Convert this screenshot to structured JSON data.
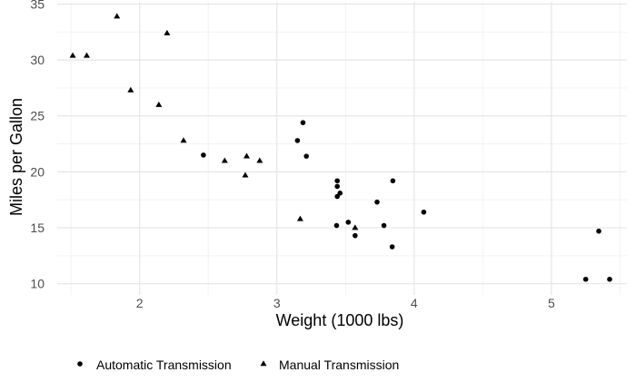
{
  "chart_data": {
    "type": "scatter",
    "xlabel": "Weight (1000 lbs)",
    "ylabel": "Miles per Gallon",
    "xlim": [
      1.4,
      5.55
    ],
    "ylim": [
      9.0,
      35.2
    ],
    "x_ticks": [
      2,
      3,
      4,
      5
    ],
    "y_ticks": [
      10,
      15,
      20,
      25,
      30,
      35
    ],
    "x_minor_ticks": [
      1.5,
      2.5,
      3.5,
      4.5,
      5.5
    ],
    "y_minor_ticks": [
      12.5,
      17.5,
      22.5,
      27.5,
      32.5
    ],
    "grid": true,
    "legend_position": "bottom-left",
    "series": [
      {
        "name": "Automatic Transmission",
        "marker": "circle",
        "points": [
          [
            3.215,
            21.4
          ],
          [
            3.44,
            18.7
          ],
          [
            3.46,
            18.1
          ],
          [
            3.57,
            14.3
          ],
          [
            3.19,
            24.4
          ],
          [
            3.15,
            22.8
          ],
          [
            3.44,
            19.2
          ],
          [
            3.44,
            17.8
          ],
          [
            4.07,
            16.4
          ],
          [
            3.73,
            17.3
          ],
          [
            3.78,
            15.2
          ],
          [
            5.25,
            10.4
          ],
          [
            5.424,
            10.4
          ],
          [
            5.345,
            14.7
          ],
          [
            2.465,
            21.5
          ],
          [
            3.52,
            15.5
          ],
          [
            3.435,
            15.2
          ],
          [
            3.84,
            13.3
          ],
          [
            3.845,
            19.2
          ]
        ]
      },
      {
        "name": "Manual Transmission",
        "marker": "triangle",
        "points": [
          [
            2.62,
            21.0
          ],
          [
            2.875,
            21.0
          ],
          [
            2.32,
            22.8
          ],
          [
            2.2,
            32.4
          ],
          [
            1.615,
            30.4
          ],
          [
            1.835,
            33.9
          ],
          [
            1.935,
            27.3
          ],
          [
            2.14,
            26.0
          ],
          [
            1.513,
            30.4
          ],
          [
            3.17,
            15.8
          ],
          [
            2.77,
            19.7
          ],
          [
            3.57,
            15.0
          ],
          [
            2.78,
            21.4
          ]
        ]
      }
    ]
  }
}
